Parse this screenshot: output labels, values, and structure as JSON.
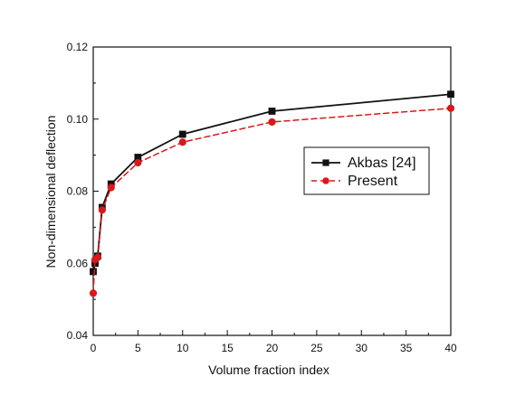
{
  "chart_data": {
    "type": "line",
    "xlabel": "Volume fraction index",
    "ylabel": "Non-dimensional deflection",
    "xlim": [
      0,
      40
    ],
    "ylim": [
      0.04,
      0.12
    ],
    "xticks": [
      0,
      5,
      10,
      15,
      20,
      25,
      30,
      35,
      40
    ],
    "yticks": [
      0.04,
      0.06,
      0.08,
      0.1,
      0.12
    ],
    "grid": false,
    "legend_position": "center-right",
    "series": [
      {
        "name": "Akbas [24]",
        "color": "#111111",
        "line_style": "solid",
        "marker": "square",
        "x": [
          0,
          0.2,
          0.5,
          1,
          2,
          5,
          10,
          20,
          40
        ],
        "y": [
          0.0577,
          0.06,
          0.062,
          0.0755,
          0.082,
          0.0894,
          0.0958,
          0.1022,
          0.1069
        ]
      },
      {
        "name": "Present",
        "color": "#d7191c",
        "line_style": "dashed",
        "marker": "circle",
        "x": [
          0,
          0.2,
          0.5,
          1,
          2,
          5,
          10,
          20,
          40
        ],
        "y": [
          0.0517,
          0.061,
          0.0616,
          0.0748,
          0.081,
          0.0879,
          0.0936,
          0.0992,
          0.103
        ]
      }
    ]
  }
}
